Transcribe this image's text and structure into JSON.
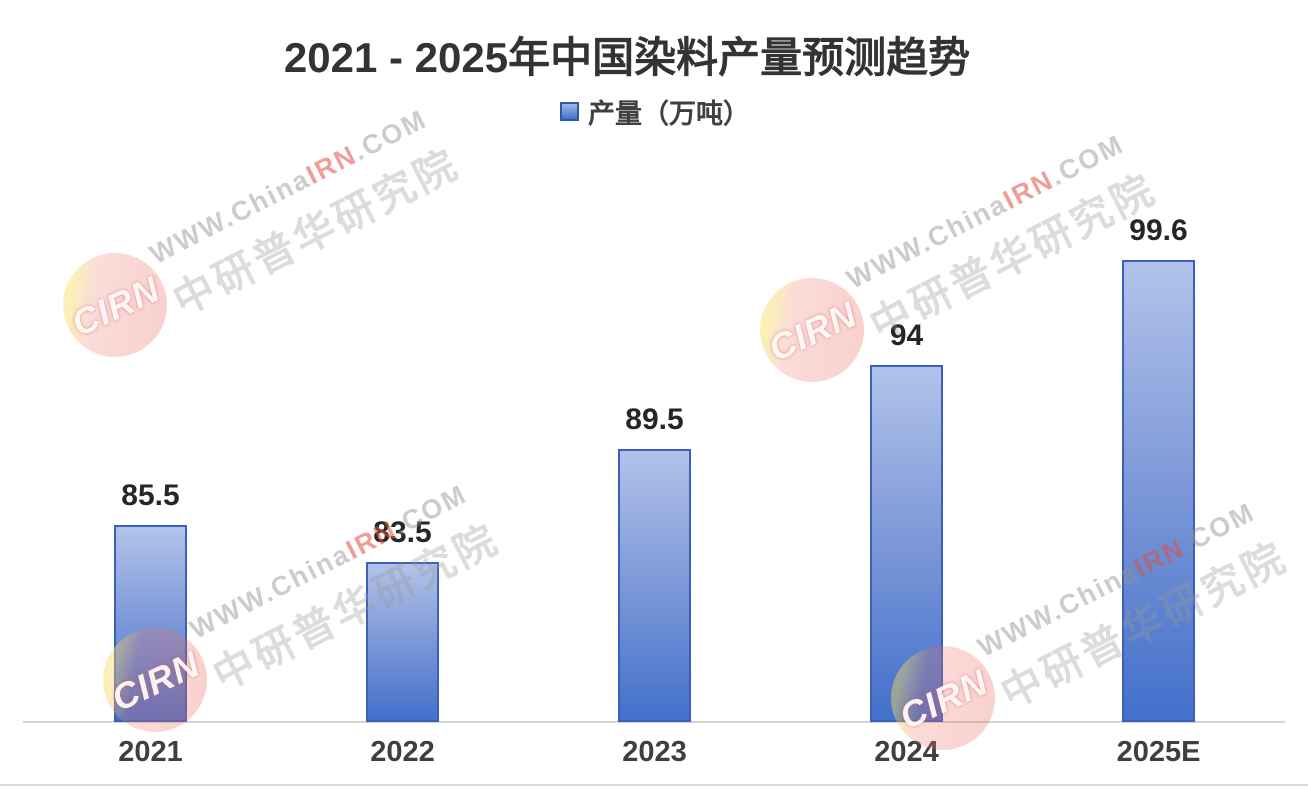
{
  "title": "2021 - 2025年中国染料产量预测趋势",
  "legend": {
    "label": "产量（万吨）"
  },
  "chart_data": {
    "type": "bar",
    "title": "2021 - 2025年中国染料产量预测趋势",
    "categories": [
      "2021",
      "2022",
      "2023",
      "2024",
      "2025E"
    ],
    "values": [
      85.5,
      83.5,
      89.5,
      94,
      99.6
    ],
    "value_labels": [
      "85.5",
      "83.5",
      "89.5",
      "94",
      "99.6"
    ],
    "series_name": "产量（万吨）",
    "legend_entries": [
      "产量（万吨）"
    ],
    "xlabel": "",
    "ylabel": "产量（万吨）",
    "ylim": [
      75,
      102
    ],
    "grid": false,
    "legend_position": "top-center",
    "y_axis_visible": false,
    "data_labels_shown": true
  },
  "watermark": {
    "logo_text": "CIRN",
    "latin_prefix": "WWW.China",
    "latin_highlight": "IRN",
    "latin_suffix": ".COM",
    "cjk": "中研普华研究院"
  },
  "colors": {
    "bar_gradient_top": "#B2C3EA",
    "bar_gradient_bottom": "#4370CB",
    "bar_border": "#3A5FC0",
    "axis_line": "#D4D4D4",
    "title_text": "#333333",
    "value_label_text": "#262626",
    "tick_label_text": "#3F3F3F",
    "watermark_highlight": "#E04E46"
  }
}
